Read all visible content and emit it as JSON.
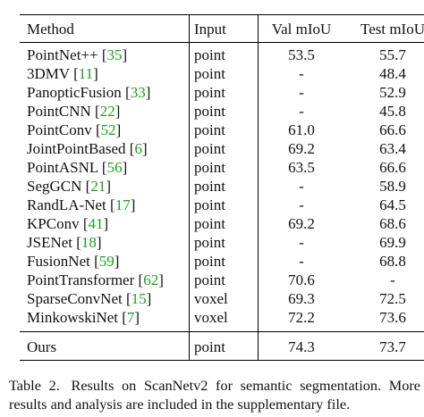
{
  "table": {
    "headers": {
      "method": "Method",
      "input": "Input",
      "val": "Val mIoU",
      "test": "Test mIoU"
    },
    "rows": [
      {
        "name": "PointNet++",
        "cite": "35",
        "input": "point",
        "val": "53.5",
        "test": "55.7"
      },
      {
        "name": "3DMV",
        "cite": "11",
        "input": "point",
        "val": "-",
        "test": "48.4"
      },
      {
        "name": "PanopticFusion",
        "cite": "33",
        "input": "point",
        "val": "-",
        "test": "52.9"
      },
      {
        "name": "PointCNN",
        "cite": "22",
        "input": "point",
        "val": "-",
        "test": "45.8"
      },
      {
        "name": "PointConv",
        "cite": "52",
        "input": "point",
        "val": "61.0",
        "test": "66.6"
      },
      {
        "name": "JointPointBased",
        "cite": "6",
        "input": "point",
        "val": "69.2",
        "test": "63.4"
      },
      {
        "name": "PointASNL",
        "cite": "56",
        "input": "point",
        "val": "63.5",
        "test": "66.6"
      },
      {
        "name": "SegGCN",
        "cite": "21",
        "input": "point",
        "val": "-",
        "test": "58.9"
      },
      {
        "name": "RandLA-Net",
        "cite": "17",
        "input": "point",
        "val": "-",
        "test": "64.5"
      },
      {
        "name": "KPConv",
        "cite": "41",
        "input": "point",
        "val": "69.2",
        "test": "68.6"
      },
      {
        "name": "JSENet",
        "cite": "18",
        "input": "point",
        "val": "-",
        "test": "69.9"
      },
      {
        "name": "FusionNet",
        "cite": "59",
        "input": "point",
        "val": "-",
        "test": "68.8"
      },
      {
        "name": "PointTransformer",
        "cite": "62",
        "input": "point",
        "val": "70.6",
        "test": "-"
      },
      {
        "name": "SparseConvNet",
        "cite": "15",
        "input": "voxel",
        "val": "69.3",
        "test": "72.5"
      },
      {
        "name": "MinkowskiNet",
        "cite": "7",
        "input": "voxel",
        "val": "72.2",
        "test": "73.6"
      }
    ],
    "ours": {
      "name": "Ours",
      "input": "point",
      "val": "74.3",
      "test": "73.7"
    }
  },
  "caption": {
    "label": "Table 2.",
    "text": "Results on ScanNetv2 for semantic segmentation. More results and analysis are included in the supplementary file."
  },
  "colors": {
    "citation": "#1aa11a",
    "text": "#111111"
  }
}
